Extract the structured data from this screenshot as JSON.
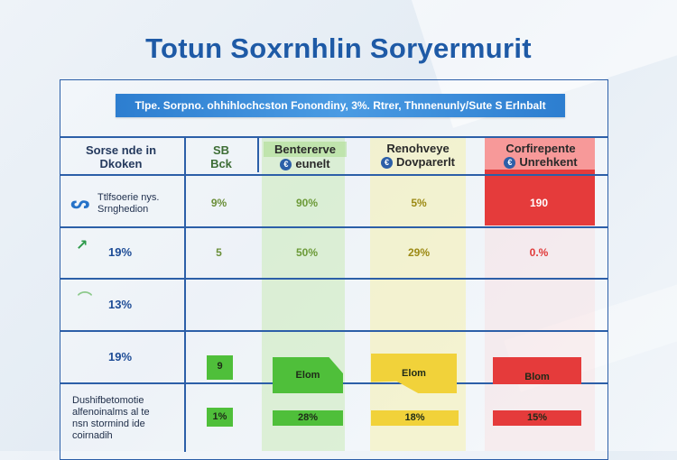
{
  "title": "Totun Soxrnhlin Soryermurit",
  "subtitle": "Tlpe. Sorpno. ohhihlochcston Fonondiny, 3%. Rtrer, Thnnenunly/Sute S Erlnbalt",
  "headers": {
    "lead": [
      "Sorse nde in",
      "Dkoken"
    ],
    "ref": [
      "SB",
      "Bck"
    ],
    "green": [
      "Bentererve",
      "eunelt"
    ],
    "yellow": [
      "Renohveye",
      "Dovparerlt"
    ],
    "red": [
      "Corfirepente",
      "Unrehkent"
    ]
  },
  "rows": [
    {
      "label": [
        "Ttlfsoerie nys.",
        "Srnghedion"
      ],
      "ref": "9%",
      "green": "90%",
      "yellow": "5%",
      "red": "190"
    },
    {
      "label": [
        "19%"
      ],
      "ref": "5",
      "green": "50%",
      "yellow": "29%",
      "red": "0.%"
    },
    {
      "label": [
        "13%"
      ]
    },
    {
      "label": [
        "19%"
      ],
      "ref": "9",
      "green": "Elom",
      "yellow": "Elom",
      "red": "Blom"
    },
    {
      "label": [
        "Dushifbetomotie",
        "alfenoinalms al te",
        "nsn stormind ide",
        "coirnadih"
      ],
      "ref": "1%",
      "green": "28%",
      "yellow": "18%",
      "red": "15%"
    }
  ],
  "colors": {
    "accent": "#1e5aa6",
    "green": "#4fbf3a",
    "yellow": "#f1d23a",
    "red": "#e53b3b"
  },
  "icons": {
    "badge": "euro-coin-icon",
    "swirl": "loop-icon",
    "check": "check-icon"
  }
}
